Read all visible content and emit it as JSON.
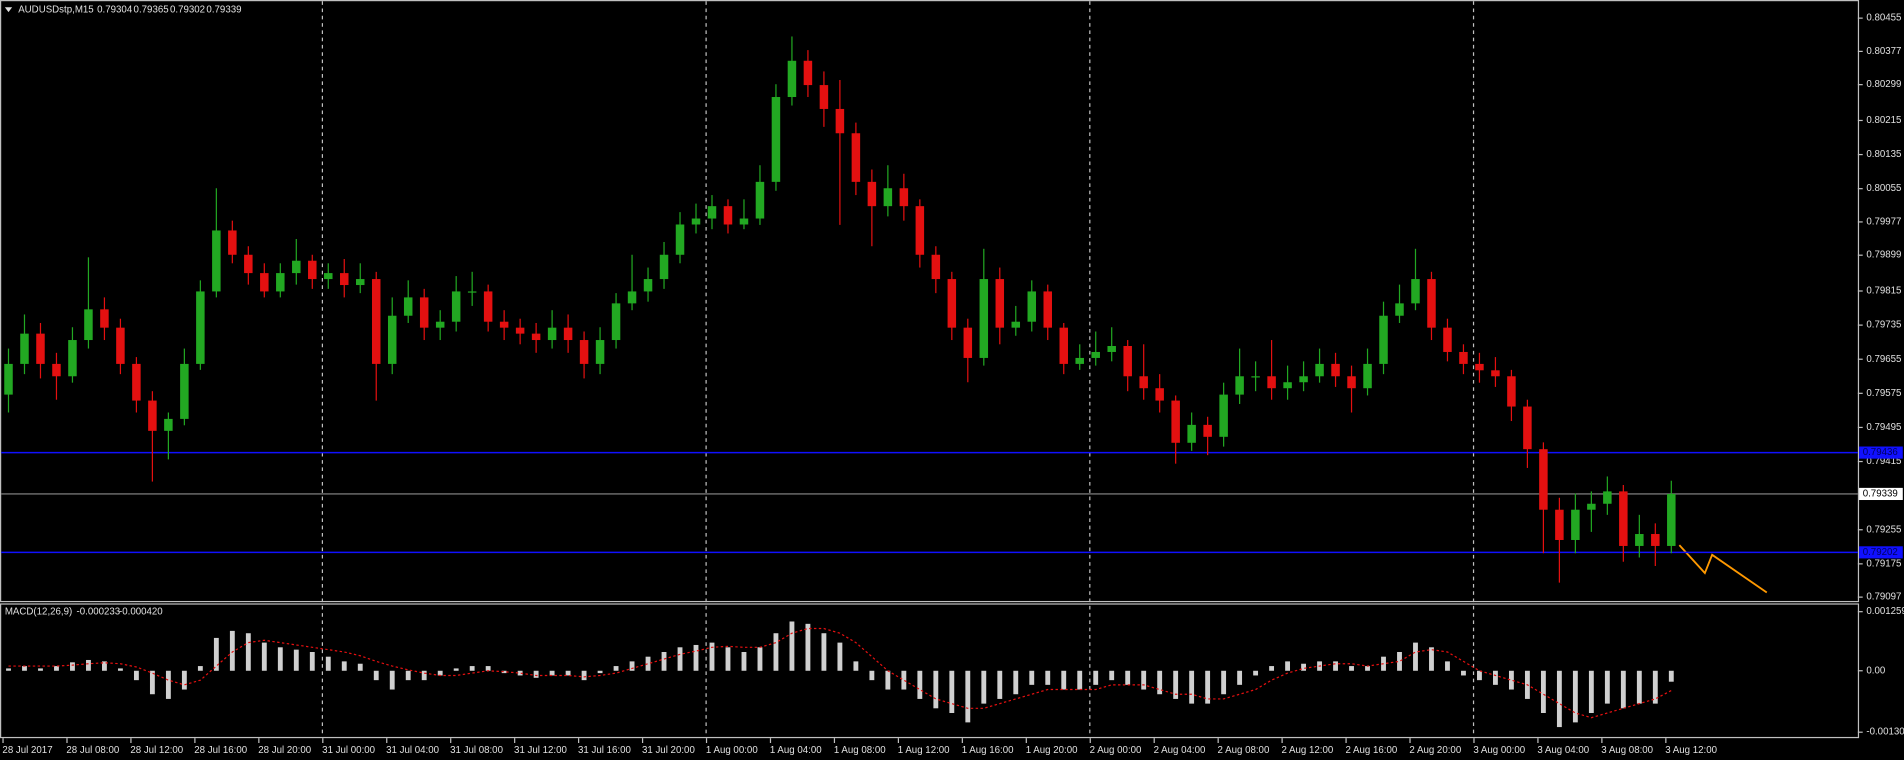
{
  "chart_data": {
    "type": "candlestick",
    "title": "AUDUSDstp,M15",
    "header_ohlc": [
      0.79304,
      0.79365,
      0.79302,
      0.79339
    ],
    "categories": [
      "28 Jul 2017",
      null,
      null,
      null,
      "28 Jul 08:00",
      null,
      null,
      null,
      "28 Jul 12:00",
      null,
      null,
      null,
      "28 Jul 16:00",
      null,
      null,
      null,
      "28 Jul 20:00",
      null,
      null,
      null,
      "31 Jul 00:00",
      null,
      null,
      null,
      "31 Jul 04:00",
      null,
      null,
      null,
      "31 Jul 08:00",
      null,
      null,
      null,
      "31 Jul 12:00",
      null,
      null,
      null,
      "31 Jul 16:00",
      null,
      null,
      null,
      "31 Jul 20:00",
      null,
      null,
      null,
      "1 Aug 00:00",
      null,
      null,
      null,
      "1 Aug 04:00",
      null,
      null,
      null,
      "1 Aug 08:00",
      null,
      null,
      null,
      "1 Aug 12:00",
      null,
      null,
      null,
      "1 Aug 16:00",
      null,
      null,
      null,
      "1 Aug 20:00",
      null,
      null,
      null,
      "2 Aug 00:00",
      null,
      null,
      null,
      "2 Aug 04:00",
      null,
      null,
      null,
      "2 Aug 08:00",
      null,
      null,
      null,
      "2 Aug 12:00",
      null,
      null,
      null,
      "2 Aug 16:00",
      null,
      null,
      null,
      "2 Aug 20:00",
      null,
      null,
      null,
      "3 Aug 00:00",
      null,
      null,
      null,
      "3 Aug 04:00",
      null,
      null,
      null,
      "3 Aug 08:00",
      null,
      null,
      null,
      "3 Aug 12:00"
    ],
    "open": [
      0.79572,
      0.79644,
      0.79715,
      0.79644,
      0.79615,
      0.797,
      0.79772,
      0.79729,
      0.79644,
      0.79558,
      0.79487,
      0.79515,
      0.79644,
      0.79814,
      0.79957,
      0.799,
      0.79857,
      0.79814,
      0.79857,
      0.79886,
      0.79843,
      0.79857,
      0.79829,
      0.79843,
      0.79644,
      0.79757,
      0.798,
      0.79729,
      0.79743,
      0.79814,
      0.79814,
      0.79743,
      0.79729,
      0.79715,
      0.797,
      0.79729,
      0.797,
      0.79644,
      0.797,
      0.79786,
      0.79814,
      0.79843,
      0.799,
      0.79971,
      0.79985,
      0.80014,
      0.79971,
      0.79985,
      0.80071,
      0.8027,
      0.80355,
      0.80298,
      0.80242,
      0.80185,
      0.80071,
      0.80014,
      0.80056,
      0.80014,
      0.799,
      0.79843,
      0.79729,
      0.79658,
      0.79843,
      0.79729,
      0.79743,
      0.79814,
      0.79729,
      0.79644,
      0.79658,
      0.79672,
      0.79686,
      0.79615,
      0.79587,
      0.79558,
      0.79459,
      0.79501,
      0.79473,
      0.79572,
      0.79615,
      0.79615,
      0.79587,
      0.79601,
      0.79615,
      0.79644,
      0.79615,
      0.79587,
      0.79644,
      0.79757,
      0.79786,
      0.79843,
      0.79729,
      0.79672,
      0.79644,
      0.79629,
      0.79615,
      0.79544,
      0.79444,
      0.79302,
      0.79231,
      0.79302,
      0.79316,
      0.79345,
      0.79217,
      0.79245,
      0.79217
    ],
    "high": [
      0.7968,
      0.7976,
      0.7974,
      0.7967,
      0.7973,
      0.79894,
      0.798,
      0.7975,
      0.7966,
      0.7958,
      0.7953,
      0.7968,
      0.7984,
      0.80056,
      0.7998,
      0.7992,
      0.7988,
      0.7988,
      0.79937,
      0.799,
      0.7988,
      0.7989,
      0.7988,
      0.7986,
      0.798,
      0.7984,
      0.7982,
      0.7977,
      0.7985,
      0.7986,
      0.7983,
      0.7977,
      0.7975,
      0.7974,
      0.7977,
      0.7976,
      0.7972,
      0.7973,
      0.7981,
      0.799,
      0.7987,
      0.7993,
      0.8,
      0.8002,
      0.8004,
      0.8003,
      0.8003,
      0.8011,
      0.803,
      0.80412,
      0.8038,
      0.8033,
      0.8031,
      0.8021,
      0.801,
      0.8011,
      0.8009,
      0.8003,
      0.7992,
      0.7986,
      0.7975,
      0.79914,
      0.7987,
      0.7978,
      0.7984,
      0.7983,
      0.7974,
      0.7969,
      0.7972,
      0.7973,
      0.797,
      0.7969,
      0.7962,
      0.7957,
      0.7953,
      0.7952,
      0.796,
      0.7968,
      0.7965,
      0.797,
      0.7964,
      0.7965,
      0.7968,
      0.7967,
      0.7964,
      0.7968,
      0.7979,
      0.7983,
      0.79914,
      0.7986,
      0.7975,
      0.7969,
      0.7967,
      0.7966,
      0.7963,
      0.7956,
      0.7946,
      0.7933,
      0.7934,
      0.79345,
      0.7938,
      0.7936,
      0.7929,
      0.7927,
      0.7937
    ],
    "low": [
      0.7953,
      0.7962,
      0.7961,
      0.7956,
      0.796,
      0.7968,
      0.797,
      0.7962,
      0.7953,
      0.79368,
      0.7942,
      0.795,
      0.7963,
      0.798,
      0.7988,
      0.7983,
      0.798,
      0.798,
      0.7983,
      0.7982,
      0.7982,
      0.798,
      0.7981,
      0.79558,
      0.7962,
      0.7974,
      0.797,
      0.797,
      0.7972,
      0.7978,
      0.7972,
      0.797,
      0.7969,
      0.7967,
      0.7968,
      0.7967,
      0.7961,
      0.7962,
      0.7968,
      0.7977,
      0.7979,
      0.7982,
      0.7988,
      0.7995,
      0.7996,
      0.7995,
      0.7996,
      0.7997,
      0.8005,
      0.8025,
      0.8027,
      0.802,
      0.7997,
      0.8004,
      0.7992,
      0.7999,
      0.7998,
      0.7987,
      0.7981,
      0.797,
      0.79601,
      0.7964,
      0.7969,
      0.7971,
      0.7972,
      0.797,
      0.7962,
      0.7963,
      0.7964,
      0.7965,
      0.7958,
      0.7956,
      0.7953,
      0.7941,
      0.7944,
      0.7943,
      0.7945,
      0.7955,
      0.7958,
      0.7956,
      0.7956,
      0.7958,
      0.796,
      0.7959,
      0.7953,
      0.7957,
      0.7962,
      0.7974,
      0.7977,
      0.797,
      0.7965,
      0.7962,
      0.796,
      0.7959,
      0.7951,
      0.794,
      0.792,
      0.79131,
      0.792,
      0.7925,
      0.7929,
      0.7918,
      0.7919,
      0.7917,
      0.792
    ],
    "close": [
      0.79644,
      0.79715,
      0.79644,
      0.79615,
      0.797,
      0.79772,
      0.79729,
      0.79644,
      0.79558,
      0.79487,
      0.79515,
      0.79644,
      0.79814,
      0.79957,
      0.799,
      0.79857,
      0.79814,
      0.79857,
      0.79886,
      0.79843,
      0.79857,
      0.79829,
      0.79843,
      0.79644,
      0.79757,
      0.798,
      0.79729,
      0.79743,
      0.79814,
      0.79814,
      0.79743,
      0.79729,
      0.79715,
      0.797,
      0.79729,
      0.797,
      0.79644,
      0.797,
      0.79786,
      0.79814,
      0.79843,
      0.799,
      0.79971,
      0.79985,
      0.80014,
      0.79971,
      0.79985,
      0.80071,
      0.8027,
      0.80355,
      0.80298,
      0.80242,
      0.80185,
      0.80071,
      0.80014,
      0.80056,
      0.80014,
      0.799,
      0.79843,
      0.79729,
      0.79658,
      0.79843,
      0.79729,
      0.79743,
      0.79814,
      0.79729,
      0.79644,
      0.79658,
      0.79672,
      0.79686,
      0.79615,
      0.79587,
      0.79558,
      0.79459,
      0.79501,
      0.79473,
      0.79572,
      0.79615,
      0.79615,
      0.79587,
      0.79601,
      0.79615,
      0.79644,
      0.79615,
      0.79587,
      0.79644,
      0.79757,
      0.79786,
      0.79843,
      0.79729,
      0.79672,
      0.79644,
      0.79629,
      0.79615,
      0.79544,
      0.79444,
      0.79302,
      0.79231,
      0.79302,
      0.79316,
      0.79345,
      0.79217,
      0.79245,
      0.79217,
      0.79339
    ],
    "up_color": "#22a822",
    "down_color": "#e41010",
    "ylim": [
      0.79088,
      0.80489
    ],
    "yticks": [
      0.80455,
      0.80377,
      0.80299,
      0.80215,
      0.80135,
      0.80055,
      0.79977,
      0.79899,
      0.79815,
      0.79735,
      0.79655,
      0.79575,
      0.79495,
      0.79415,
      0.79255,
      0.79175,
      0.79097
    ],
    "grid": false,
    "levels": [
      {
        "value": 0.79436,
        "color": "#1010ff"
      },
      {
        "value": 0.79202,
        "color": "#1010ff"
      }
    ],
    "last_price": 0.79339,
    "last_price_color": "#8c8c8c",
    "macd": {
      "name": "MACD(12,26,9)",
      "last": {
        "values": [
          -0.000233,
          -0.00042
        ],
        "value_labels": [
          "-0.000233",
          "-0.000420"
        ]
      },
      "histogram": [
        5e-05,
        0.0001,
        5e-05,
        0.0001,
        0.00018,
        0.00023,
        0.0002,
        5e-05,
        -0.0002,
        -0.0005,
        -0.0006,
        -0.0004,
        0.0001,
        0.0007,
        0.00085,
        0.0008,
        0.0006,
        0.0005,
        0.00045,
        0.0004,
        0.0003,
        0.0002,
        0.00015,
        -0.0002,
        -0.0004,
        -0.0002,
        -0.0002,
        -0.0001,
        5e-05,
        0.0001,
        0.0001,
        -5e-05,
        -0.0001,
        -0.00015,
        -0.0001,
        -0.0001,
        -0.0002,
        -5e-05,
        0.0001,
        0.0002,
        0.0003,
        0.0004,
        0.0005,
        0.00055,
        0.0006,
        0.0005,
        0.0004,
        0.0005,
        0.0008,
        0.00105,
        0.001,
        0.0008,
        0.0006,
        0.0002,
        -0.0002,
        -0.0004,
        -0.0004,
        -0.0006,
        -0.0008,
        -0.0009,
        -0.0011,
        -0.0007,
        -0.0006,
        -0.0005,
        -0.0003,
        -0.0003,
        -0.0004,
        -0.0004,
        -0.0003,
        -0.0002,
        -0.0003,
        -0.0004,
        -0.0005,
        -0.0006,
        -0.0007,
        -0.0007,
        -0.0005,
        -0.0003,
        -0.0001,
        0.0001,
        0.0002,
        0.00015,
        0.0002,
        0.0002,
        0.0001,
        0.0001,
        0.0003,
        0.0004,
        0.0006,
        0.0005,
        0.0002,
        -0.0001,
        -0.0002,
        -0.0003,
        -0.0004,
        -0.0006,
        -0.0009,
        -0.0012,
        -0.0011,
        -0.0009,
        -0.0007,
        -0.0008,
        -0.0007,
        -0.0007,
        -0.000233
      ],
      "signal": [
        0.0001,
        0.0001,
        0.0001,
        0.0001,
        0.00012,
        0.00015,
        0.00017,
        0.00015,
        8e-05,
        -5e-05,
        -0.0002,
        -0.0003,
        -0.0002,
        0.0001,
        0.0004,
        0.0006,
        0.00065,
        0.0006,
        0.00055,
        0.0005,
        0.00045,
        0.0004,
        0.00032,
        0.0002,
        0.0001,
        2e-05,
        -5e-05,
        -0.0001,
        -0.0001,
        -5e-05,
        0,
        -2e-05,
        -5e-05,
        -0.0001,
        -0.0001,
        -0.0001,
        -0.00013,
        -0.0001,
        -5e-05,
        5e-05,
        0.00015,
        0.00025,
        0.00035,
        0.00042,
        0.0005,
        0.00052,
        0.0005,
        0.0005,
        0.0006,
        0.0008,
        0.0009,
        0.0009,
        0.0008,
        0.0006,
        0.0003,
        0,
        -0.0002,
        -0.0004,
        -0.0006,
        -0.0007,
        -0.0008,
        -0.0008,
        -0.0007,
        -0.0006,
        -0.0005,
        -0.0004,
        -0.0004,
        -0.0004,
        -0.0004,
        -0.0003,
        -0.0003,
        -0.0003,
        -0.0004,
        -0.0005,
        -0.0005,
        -0.0006,
        -0.0006,
        -0.0005,
        -0.0004,
        -0.0002,
        -5e-05,
        5e-05,
        0.0001,
        0.00015,
        0.00015,
        0.0001,
        0.00015,
        0.0002,
        0.0004,
        0.00045,
        0.0004,
        0.0002,
        0,
        -0.0001,
        -0.0002,
        -0.0003,
        -0.0005,
        -0.0007,
        -0.0009,
        -0.001,
        -0.0009,
        -0.0008,
        -0.0007,
        -0.0006,
        -0.00042
      ],
      "histogram_color": "#d0d0d0",
      "signal_color": "#e41010",
      "ylim": [
        -0.00141,
        0.00141
      ],
      "yticks": [
        0.001259,
        {
          "value": 0,
          "label": "0.00"
        },
        -0.001309
      ]
    }
  }
}
